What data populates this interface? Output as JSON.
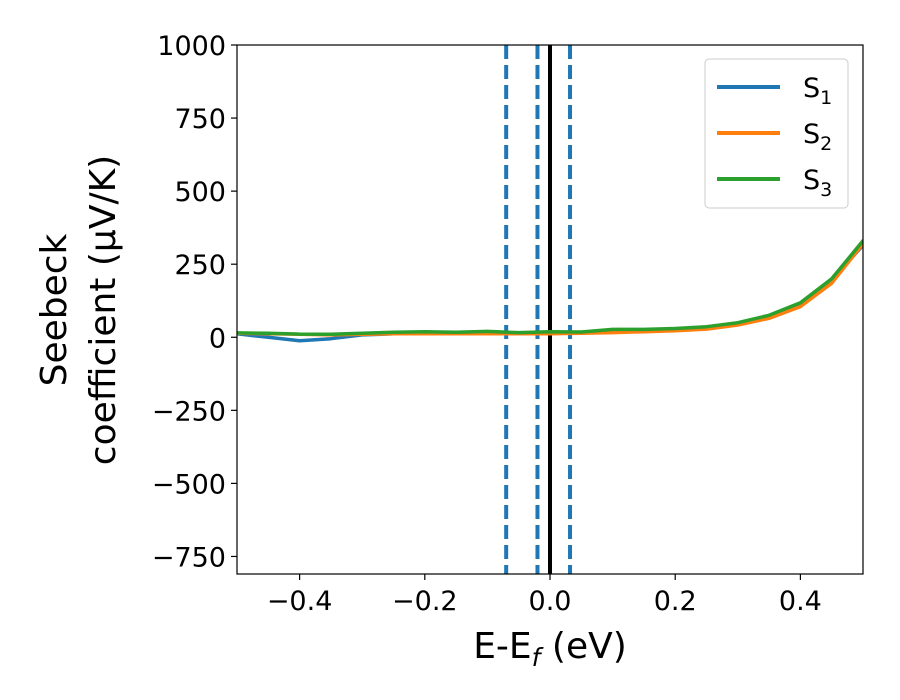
{
  "chart_data": {
    "type": "line",
    "xlabel": "E-E",
    "xlabel_sub": "f",
    "xlabel_unit": " (eV)",
    "ylabel_line1": "Seebeck",
    "ylabel_line2": "coefficient  (μV/K)",
    "xlim": [
      -0.5,
      0.5
    ],
    "ylim": [
      -810,
      1000
    ],
    "xticks": [
      -0.4,
      -0.2,
      0.0,
      0.2,
      0.4
    ],
    "xtick_labels": [
      "−0.4",
      "−0.2",
      "0.0",
      "0.2",
      "0.4"
    ],
    "yticks": [
      1000,
      750,
      500,
      250,
      0,
      -250,
      -500,
      -750
    ],
    "ytick_labels": [
      "1000",
      "750",
      "500",
      "250",
      "0",
      "−250",
      "−500",
      "−750"
    ],
    "grid": false,
    "legend_position": "top-right",
    "series": [
      {
        "name": "S",
        "subscript": "1",
        "color": "#1f77b4",
        "x": [
          -0.5,
          -0.45,
          -0.4,
          -0.35,
          -0.3,
          -0.25,
          -0.2,
          -0.15,
          -0.1,
          -0.05,
          0.0,
          0.05,
          0.1,
          0.15,
          0.2,
          0.25,
          0.3,
          0.35,
          0.4,
          0.45,
          0.5
        ],
        "y": [
          12,
          0,
          -12,
          -5,
          8,
          12,
          15,
          16,
          15,
          15,
          16,
          17,
          20,
          22,
          26,
          33,
          48,
          72,
          115,
          195,
          315
        ]
      },
      {
        "name": "S",
        "subscript": "2",
        "color": "#ff7f0e",
        "x": [
          -0.5,
          -0.45,
          -0.4,
          -0.35,
          -0.3,
          -0.25,
          -0.2,
          -0.15,
          -0.1,
          -0.05,
          0.0,
          0.05,
          0.1,
          0.15,
          0.2,
          0.25,
          0.3,
          0.35,
          0.4,
          0.45,
          0.5
        ],
        "y": [
          14,
          12,
          10,
          8,
          10,
          12,
          12,
          12,
          12,
          12,
          12,
          14,
          16,
          19,
          22,
          28,
          42,
          65,
          105,
          185,
          320
        ]
      },
      {
        "name": "S",
        "subscript": "3",
        "color": "#2ca02c",
        "x": [
          -0.5,
          -0.45,
          -0.4,
          -0.35,
          -0.3,
          -0.25,
          -0.2,
          -0.15,
          -0.1,
          -0.05,
          0.0,
          0.05,
          0.1,
          0.15,
          0.2,
          0.25,
          0.3,
          0.35,
          0.4,
          0.45,
          0.5
        ],
        "y": [
          15,
          14,
          11,
          10,
          14,
          17,
          19,
          17,
          20,
          16,
          19,
          18,
          27,
          27,
          30,
          36,
          50,
          75,
          118,
          200,
          330
        ]
      }
    ],
    "vlines": [
      {
        "x": -0.07,
        "style": "dashed",
        "color": "#1f77b4"
      },
      {
        "x": -0.02,
        "style": "dashed",
        "color": "#1f77b4"
      },
      {
        "x": 0.0,
        "style": "solid",
        "color": "#000000"
      },
      {
        "x": 0.032,
        "style": "dashed",
        "color": "#1f77b4"
      }
    ]
  }
}
